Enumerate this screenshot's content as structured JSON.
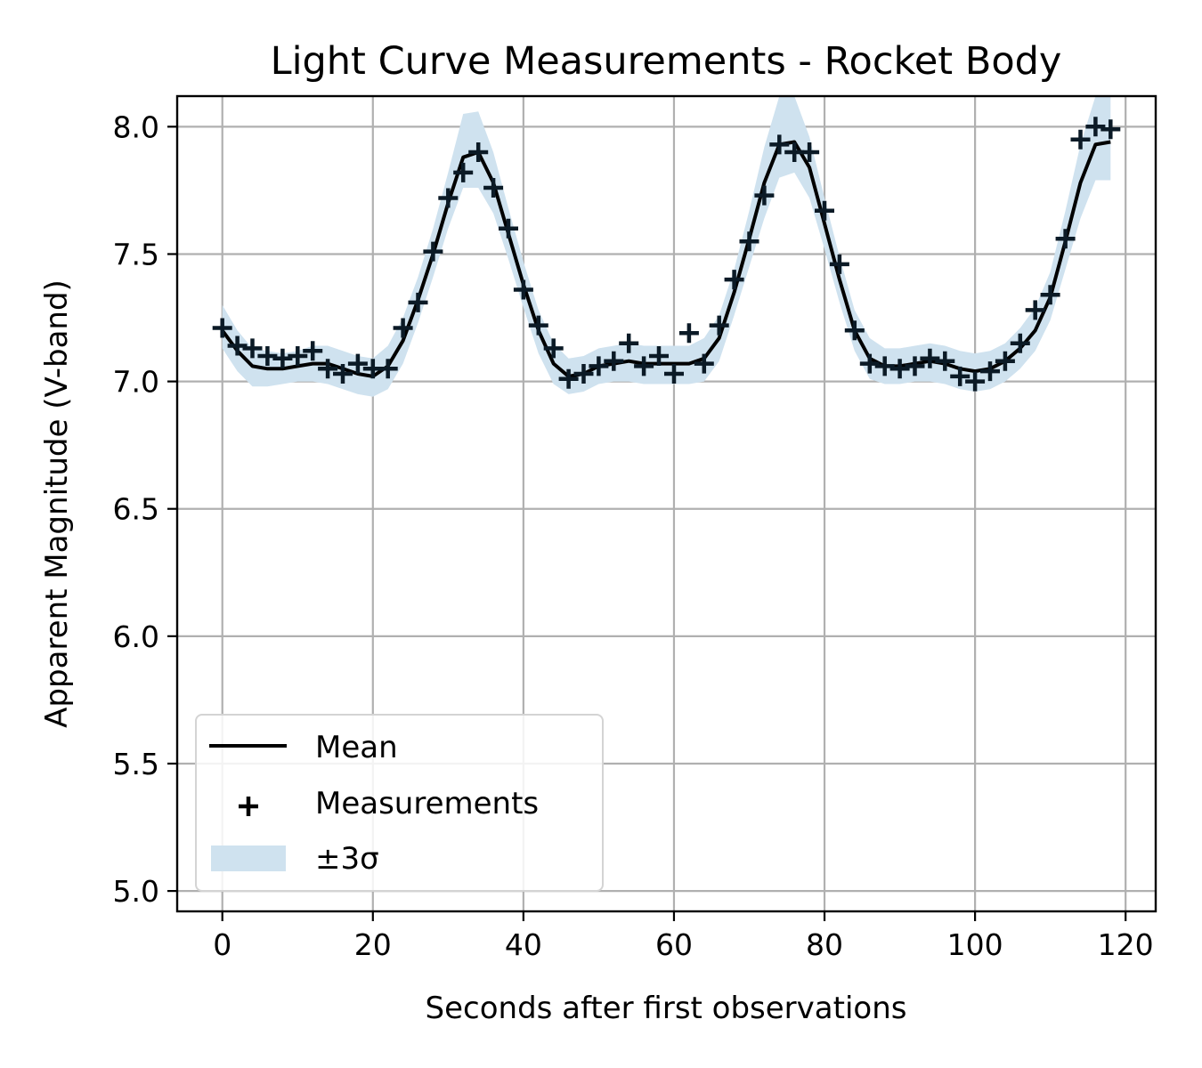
{
  "chart_data": {
    "type": "line",
    "title": "Light Curve Measurements - Rocket Body",
    "xlabel": "Seconds after first observations",
    "ylabel": "Apparent Magnitude (V-band)",
    "xlim": [
      -6,
      124
    ],
    "ylim": [
      4.92,
      8.12
    ],
    "xticks": [
      0,
      20,
      40,
      60,
      80,
      100,
      120
    ],
    "yticks": [
      5.0,
      5.5,
      6.0,
      6.5,
      7.0,
      7.5,
      8.0
    ],
    "xtick_labels": [
      "0",
      "20",
      "40",
      "60",
      "80",
      "100",
      "120"
    ],
    "ytick_labels": [
      "5.0",
      "5.5",
      "6.0",
      "6.5",
      "7.0",
      "7.5",
      "8.0"
    ],
    "grid": true,
    "legend_position": "lower-left",
    "colors": {
      "mean": "#000000",
      "measurements": "#0b1a26",
      "band": "#cfe2ef"
    },
    "x": [
      0,
      2,
      4,
      6,
      8,
      10,
      12,
      14,
      16,
      18,
      20,
      22,
      24,
      26,
      28,
      30,
      32,
      34,
      36,
      38,
      40,
      42,
      44,
      46,
      48,
      50,
      52,
      54,
      56,
      58,
      60,
      62,
      64,
      66,
      68,
      70,
      72,
      74,
      76,
      78,
      80,
      82,
      84,
      86,
      88,
      90,
      92,
      94,
      96,
      98,
      100,
      102,
      104,
      106,
      108,
      110,
      112,
      114,
      116,
      118
    ],
    "series": [
      {
        "name": "Mean",
        "kind": "line",
        "values": [
          7.2,
          7.12,
          7.06,
          7.05,
          7.05,
          7.06,
          7.07,
          7.07,
          7.05,
          7.03,
          7.02,
          7.06,
          7.16,
          7.32,
          7.5,
          7.7,
          7.88,
          7.9,
          7.78,
          7.58,
          7.38,
          7.2,
          7.07,
          7.02,
          7.03,
          7.06,
          7.07,
          7.08,
          7.07,
          7.07,
          7.07,
          7.07,
          7.09,
          7.17,
          7.35,
          7.56,
          7.78,
          7.93,
          7.94,
          7.84,
          7.62,
          7.4,
          7.2,
          7.09,
          7.06,
          7.06,
          7.07,
          7.08,
          7.07,
          7.05,
          7.04,
          7.05,
          7.08,
          7.13,
          7.2,
          7.33,
          7.55,
          7.78,
          7.93,
          7.94
        ]
      },
      {
        "name": "Measurements",
        "kind": "scatter",
        "values": [
          7.21,
          7.14,
          7.13,
          7.1,
          7.09,
          7.1,
          7.12,
          7.05,
          7.03,
          7.07,
          7.05,
          7.05,
          7.21,
          7.31,
          7.51,
          7.72,
          7.82,
          7.9,
          7.76,
          7.6,
          7.36,
          7.22,
          7.13,
          7.01,
          7.03,
          7.06,
          7.08,
          7.15,
          7.06,
          7.1,
          7.03,
          7.19,
          7.07,
          7.22,
          7.4,
          7.55,
          7.73,
          7.93,
          7.9,
          7.9,
          7.67,
          7.46,
          7.2,
          7.07,
          7.06,
          7.05,
          7.06,
          7.09,
          7.08,
          7.02,
          7.0,
          7.04,
          7.08,
          7.15,
          7.28,
          7.34,
          7.56,
          7.95,
          8.0,
          7.99
        ]
      },
      {
        "name": "±3σ",
        "kind": "band",
        "lower": [
          7.13,
          7.04,
          6.98,
          6.98,
          6.99,
          7.0,
          7.0,
          6.99,
          6.97,
          6.95,
          6.94,
          6.97,
          7.07,
          7.23,
          7.41,
          7.6,
          7.76,
          7.76,
          7.66,
          7.48,
          7.29,
          7.11,
          6.99,
          6.95,
          6.96,
          6.99,
          7.0,
          7.0,
          6.99,
          6.99,
          6.99,
          6.99,
          7.0,
          7.08,
          7.26,
          7.45,
          7.64,
          7.8,
          7.82,
          7.72,
          7.52,
          7.31,
          7.12,
          7.01,
          6.99,
          6.99,
          7.0,
          7.0,
          6.99,
          6.97,
          6.96,
          6.97,
          7.0,
          7.05,
          7.12,
          7.24,
          7.44,
          7.64,
          7.79,
          7.79
        ],
        "upper": [
          7.3,
          7.2,
          7.13,
          7.12,
          7.11,
          7.12,
          7.14,
          7.14,
          7.12,
          7.1,
          7.09,
          7.14,
          7.25,
          7.41,
          7.6,
          7.82,
          8.05,
          8.06,
          7.9,
          7.68,
          7.47,
          7.28,
          7.15,
          7.09,
          7.1,
          7.13,
          7.14,
          7.15,
          7.14,
          7.14,
          7.14,
          7.14,
          7.17,
          7.26,
          7.44,
          7.67,
          7.92,
          8.12,
          8.12,
          7.96,
          7.72,
          7.49,
          7.28,
          7.17,
          7.13,
          7.13,
          7.14,
          7.15,
          7.14,
          7.12,
          7.11,
          7.12,
          7.15,
          7.21,
          7.29,
          7.43,
          7.67,
          7.93,
          8.12,
          8.12
        ]
      }
    ],
    "legend": [
      {
        "label": "Mean",
        "kind": "line"
      },
      {
        "label": "Measurements",
        "kind": "marker"
      },
      {
        "label": "±3σ",
        "kind": "patch"
      }
    ]
  }
}
